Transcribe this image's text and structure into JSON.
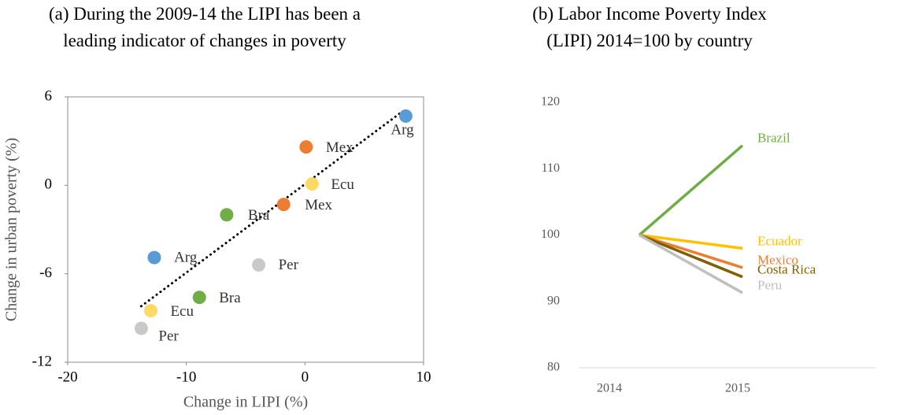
{
  "chart_data": [
    {
      "type": "scatter",
      "title": "(a) During the 2009-14 the LIPI has been a leading indicator of changes in poverty",
      "x_label": "Change in LIPI (%)",
      "y_label": "Change in urban poverty (%)",
      "xlim": [
        -20,
        10
      ],
      "xticks": [
        -20,
        -10,
        0,
        10
      ],
      "ylim": [
        -12,
        6
      ],
      "yticks": [
        -12,
        -6,
        0,
        6
      ],
      "points": [
        {
          "label": "Arg",
          "x": 8.5,
          "y": 4.7,
          "color": "#5b9bd5"
        },
        {
          "label": "Mex",
          "x": 0.1,
          "y": 2.6,
          "color": "#ed7d31"
        },
        {
          "label": "Ecu",
          "x": 0.6,
          "y": 0.1,
          "color": "#ffd966"
        },
        {
          "label": "Mex",
          "x": -1.8,
          "y": -1.3,
          "color": "#ed7d31"
        },
        {
          "label": "Bra",
          "x": -6.6,
          "y": -2.0,
          "color": "#70ad47"
        },
        {
          "label": "Arg",
          "x": -12.7,
          "y": -4.9,
          "color": "#5b9bd5"
        },
        {
          "label": "Per",
          "x": -3.9,
          "y": -5.4,
          "color": "#c9c9c9"
        },
        {
          "label": "Bra",
          "x": -8.9,
          "y": -7.6,
          "color": "#70ad47"
        },
        {
          "label": "Ecu",
          "x": -13.0,
          "y": -8.5,
          "color": "#ffd966"
        },
        {
          "label": "Per",
          "x": -13.8,
          "y": -9.7,
          "color": "#c9c9c9"
        }
      ],
      "trendline": {
        "x": [
          -13.8,
          8.2
        ],
        "y": [
          -8.2,
          5.0
        ],
        "color": "#000000"
      }
    },
    {
      "type": "line",
      "title": "(b) Labor Income Poverty Index (LIPI) 2014=100 by country",
      "categories": [
        "2014",
        "2015"
      ],
      "ylim": [
        80,
        120
      ],
      "yticks": [
        80,
        90,
        100,
        110,
        120
      ],
      "grid": false,
      "series": [
        {
          "name": "Brazil",
          "color": "#70ad47",
          "values": [
            100,
            113.5
          ]
        },
        {
          "name": "Ecuador",
          "color": "#ffc000",
          "values": [
            100,
            98.0
          ]
        },
        {
          "name": "Mexico",
          "color": "#ed7d31",
          "values": [
            100,
            95.1
          ]
        },
        {
          "name": "Costa Rica",
          "color": "#7f6000",
          "values": [
            100,
            93.7
          ]
        },
        {
          "name": "Peru",
          "color": "#bfbfbf",
          "values": [
            100,
            91.3
          ]
        }
      ]
    }
  ]
}
